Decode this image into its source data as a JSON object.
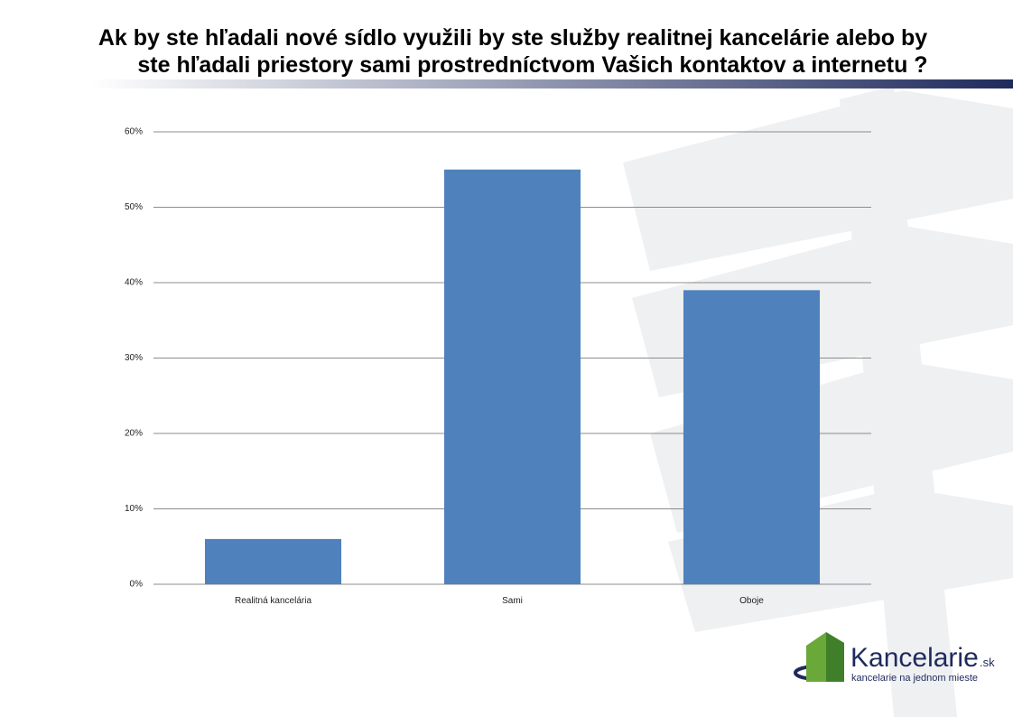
{
  "chart_data": {
    "type": "bar",
    "title": [
      "Ak by ste hľadali nové sídlo využili by ste služby realitnej kancelárie alebo by",
      "ste hľadali priestory sami prostredníctvom Vašich kontaktov a internetu ?"
    ],
    "categories": [
      "Realitná kancelária",
      "Sami",
      "Oboje"
    ],
    "values": [
      6,
      55,
      39
    ],
    "color": "#4f81bd",
    "ylim": [
      0,
      60
    ],
    "yticks": [
      {
        "value": 0,
        "label": "0%"
      },
      {
        "value": 10,
        "label": "10%"
      },
      {
        "value": 20,
        "label": "20%"
      },
      {
        "value": 30,
        "label": "30%"
      },
      {
        "value": 40,
        "label": "40%"
      },
      {
        "value": 50,
        "label": "50%"
      },
      {
        "value": 60,
        "label": "60%"
      }
    ],
    "grid": true
  },
  "logo": {
    "name": "Kancelarie",
    "domain": ".sk",
    "tagline": "kancelarie na jednom mieste"
  }
}
